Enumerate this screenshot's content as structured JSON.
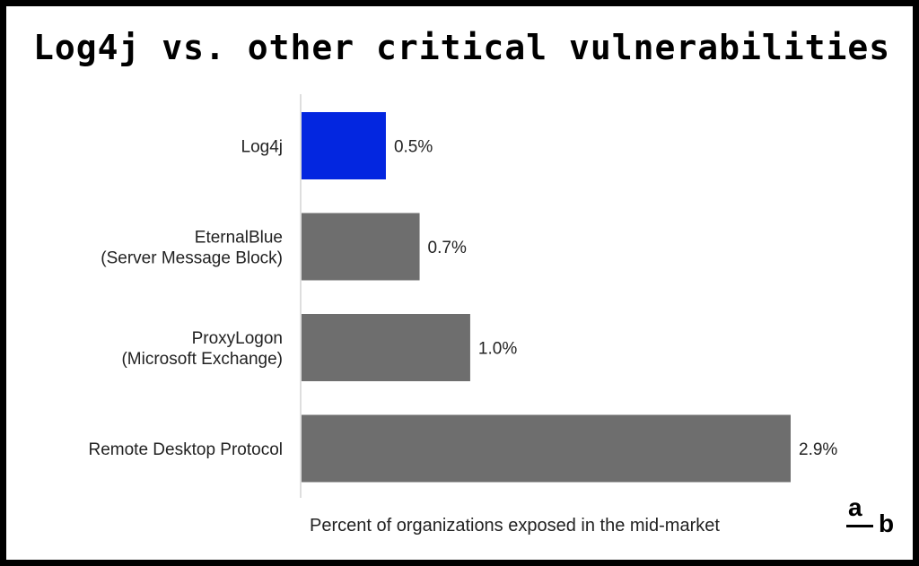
{
  "chart_data": {
    "type": "bar",
    "orientation": "horizontal",
    "title": "Log4j vs. other critical vulnerabilities",
    "xlabel": "Percent of organizations exposed in the mid-market",
    "ylabel": "",
    "xlim": [
      0,
      2.9
    ],
    "grid": false,
    "categories": [
      [
        "Log4j"
      ],
      [
        "EternalBlue",
        "(Server Message Block)"
      ],
      [
        "ProxyLogon",
        "(Microsoft Exchange)"
      ],
      [
        "Remote Desktop Protocol"
      ]
    ],
    "values": [
      0.5,
      0.7,
      1.0,
      2.9
    ],
    "value_labels": [
      "0.5%",
      "0.7%",
      "1.0%",
      "2.9%"
    ],
    "colors": [
      "#0326e0",
      "#6e6e6e",
      "#6e6e6e",
      "#6e6e6e"
    ]
  },
  "brand": {
    "logo_top": "a",
    "logo_bottom": "b"
  }
}
